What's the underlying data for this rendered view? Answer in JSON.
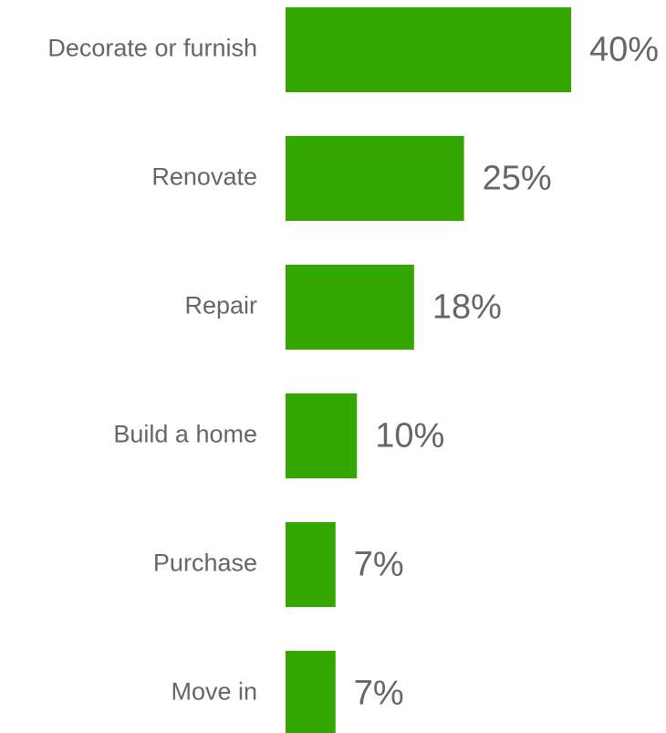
{
  "chart_data": {
    "type": "bar",
    "orientation": "horizontal",
    "categories": [
      "Decorate or furnish",
      "Renovate",
      "Repair",
      "Build a home",
      "Purchase",
      "Move in"
    ],
    "values": [
      40,
      25,
      18,
      10,
      7,
      7
    ],
    "value_labels": [
      "40%",
      "25%",
      "18%",
      "10%",
      "7%",
      "7%"
    ],
    "color": "#34a600"
  }
}
